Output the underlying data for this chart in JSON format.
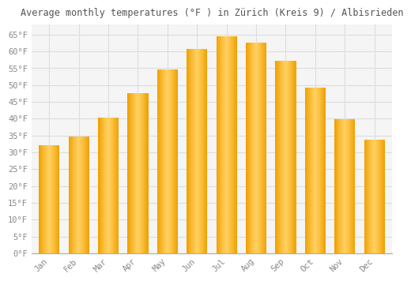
{
  "title": "Average monthly temperatures (°F ) in Zürich (Kreis 9) / Albisrieden",
  "months": [
    "Jan",
    "Feb",
    "Mar",
    "Apr",
    "May",
    "Jun",
    "Jul",
    "Aug",
    "Sep",
    "Oct",
    "Nov",
    "Dec"
  ],
  "values": [
    32.0,
    34.7,
    40.3,
    47.5,
    54.7,
    60.8,
    64.4,
    62.6,
    57.2,
    49.3,
    39.9,
    33.8
  ],
  "bar_color_light": "#FFD060",
  "bar_color_dark": "#F0A000",
  "background_color": "#FFFFFF",
  "plot_bg_color": "#F5F5F5",
  "grid_color": "#DDDDDD",
  "ylim": [
    0,
    68
  ],
  "yticks": [
    0,
    5,
    10,
    15,
    20,
    25,
    30,
    35,
    40,
    45,
    50,
    55,
    60,
    65
  ],
  "ytick_labels": [
    "0°F",
    "5°F",
    "10°F",
    "15°F",
    "20°F",
    "25°F",
    "30°F",
    "35°F",
    "40°F",
    "45°F",
    "50°F",
    "55°F",
    "60°F",
    "65°F"
  ],
  "title_fontsize": 8.5,
  "tick_fontsize": 7.5,
  "font_family": "monospace"
}
